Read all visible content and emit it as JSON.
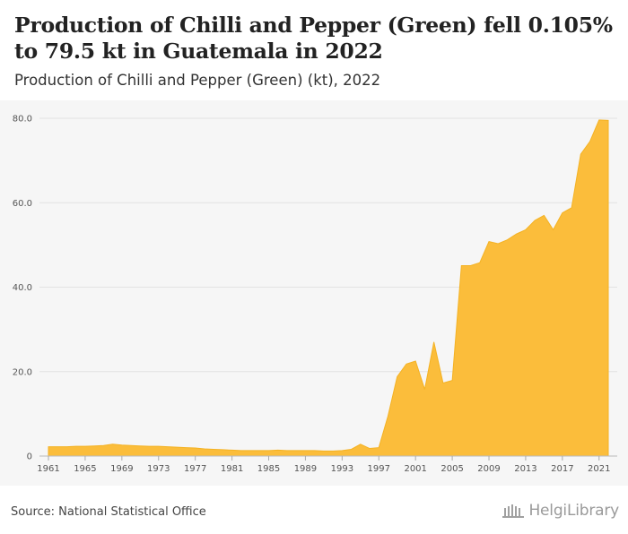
{
  "header": {
    "title": "Production of Chilli and Pepper (Green) fell 0.105% to 79.5 kt in Guatemala in 2022",
    "subtitle": "Production of Chilli and Pepper (Green) (kt), 2022"
  },
  "footer": {
    "source": "Source: National Statistical Office",
    "brand": "HelgiLibrary"
  },
  "colors": {
    "fill": "#fbbd3b",
    "stroke": "#f4b223",
    "grid": "#e2e2e2",
    "tick_text": "#555555",
    "plot_bg": "#f6f6f6"
  },
  "chart_data": {
    "type": "area",
    "title": "Production of Chilli and Pepper (Green) (kt), 2022",
    "xlabel": "",
    "ylabel": "",
    "ylim": [
      0,
      80
    ],
    "yticks": [
      0,
      20.0,
      40.0,
      60.0,
      80.0
    ],
    "ytick_labels": [
      "0",
      "20.0",
      "40.0",
      "60.0",
      "80.0"
    ],
    "xticks": [
      1961,
      1965,
      1969,
      1973,
      1977,
      1981,
      1985,
      1989,
      1993,
      1997,
      2001,
      2005,
      2009,
      2013,
      2017,
      2021
    ],
    "grid": true,
    "legend": "none",
    "x": [
      1961,
      1962,
      1963,
      1964,
      1965,
      1966,
      1967,
      1968,
      1969,
      1970,
      1971,
      1972,
      1973,
      1974,
      1975,
      1976,
      1977,
      1978,
      1979,
      1980,
      1981,
      1982,
      1983,
      1984,
      1985,
      1986,
      1987,
      1988,
      1989,
      1990,
      1991,
      1992,
      1993,
      1994,
      1995,
      1996,
      1997,
      1998,
      1999,
      2000,
      2001,
      2002,
      2003,
      2004,
      2005,
      2006,
      2007,
      2008,
      2009,
      2010,
      2011,
      2012,
      2013,
      2014,
      2015,
      2016,
      2017,
      2018,
      2019,
      2020,
      2021,
      2022
    ],
    "series": [
      {
        "values": [
          2.2,
          2.2,
          2.2,
          2.3,
          2.3,
          2.4,
          2.5,
          2.8,
          2.6,
          2.5,
          2.4,
          2.3,
          2.3,
          2.2,
          2.1,
          2.0,
          1.9,
          1.7,
          1.6,
          1.5,
          1.4,
          1.3,
          1.3,
          1.3,
          1.3,
          1.4,
          1.3,
          1.3,
          1.3,
          1.3,
          1.2,
          1.2,
          1.3,
          1.6,
          2.8,
          1.8,
          2.0,
          9.5,
          18.8,
          21.8,
          22.5,
          15.8,
          27.0,
          17.3,
          17.9,
          45.1,
          45.1,
          45.8,
          50.8,
          50.3,
          51.2,
          52.6,
          53.6,
          55.8,
          57.0,
          53.6,
          57.6,
          58.8,
          71.5,
          74.5,
          79.6,
          79.5
        ]
      }
    ]
  }
}
